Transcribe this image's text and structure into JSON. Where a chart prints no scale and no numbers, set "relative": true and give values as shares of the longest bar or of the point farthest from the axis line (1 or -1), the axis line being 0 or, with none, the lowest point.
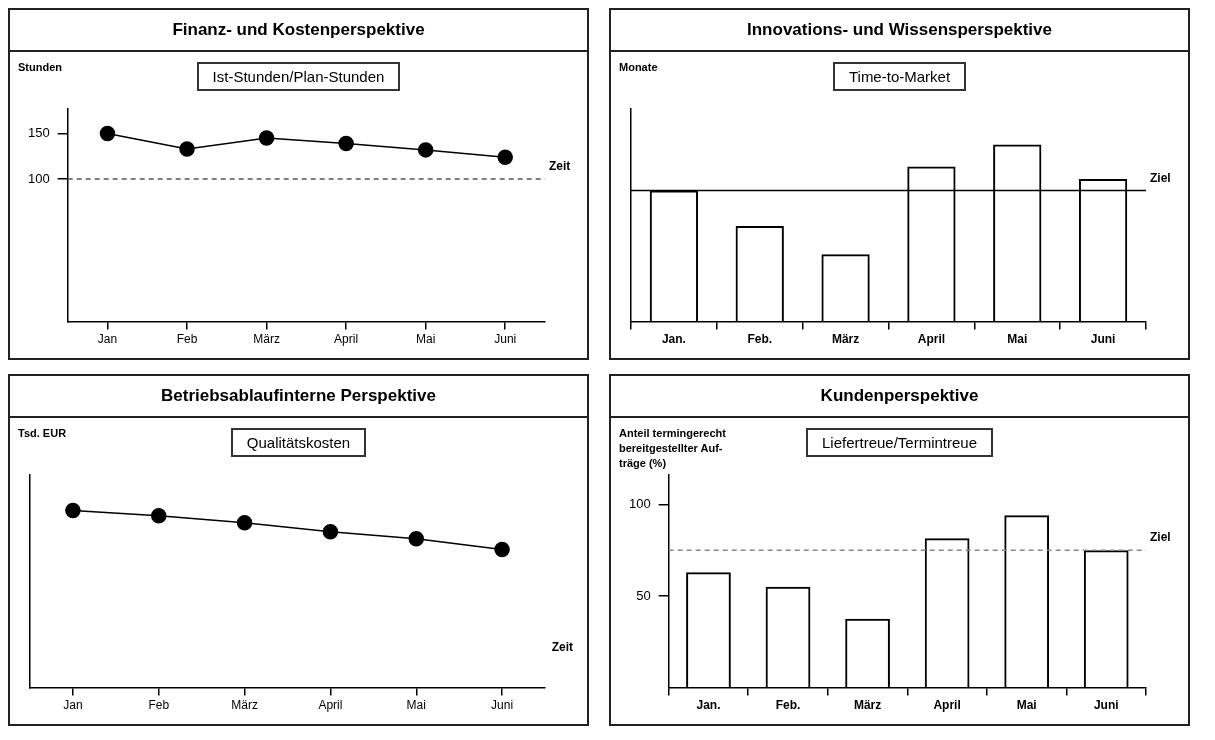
{
  "chart_data": [
    {
      "type": "line",
      "title": "Finanz- und Kostenperspektive",
      "subtitle": "Ist-Stunden/Plan-Stunden",
      "ylabel": "Stunden",
      "categories": [
        "Jan",
        "Feb",
        "März",
        "April",
        "Mai",
        "Juni"
      ],
      "values": [
        150,
        133,
        145,
        139,
        132,
        124
      ],
      "color": "#000000",
      "marker": "circle",
      "ylim": [
        -57,
        177
      ],
      "yticks": [
        100,
        150
      ],
      "ref_lines": [
        {
          "axis": "y",
          "value": 100,
          "label": "Zeit",
          "line_style": "dashed",
          "color": "#555555"
        }
      ]
    },
    {
      "type": "bar",
      "title": "Innovations- und Wissensperspektive",
      "subtitle": "Time-to-Market",
      "ylabel": "Monate",
      "categories": [
        "Jan.",
        "Feb.",
        "März",
        "April",
        "Mai",
        "Juni"
      ],
      "values": [
        0.74,
        0.54,
        0.38,
        0.875,
        1,
        0.805
      ],
      "color": "#000000",
      "relative": true,
      "ref_lines": [
        {
          "axis": "y",
          "value": 0.74,
          "label": "Ziel",
          "line_style": "solid",
          "color": "#000000"
        }
      ]
    },
    {
      "type": "line",
      "title": "Betriebsablaufinterne Perspektive",
      "subtitle": "Qualitätskosten",
      "ylabel": "Tsd. EUR",
      "xlabel": "Zeit",
      "categories": [
        "Jan",
        "Feb",
        "März",
        "April",
        "Mai",
        "Juni"
      ],
      "values": [
        1,
        0.97,
        0.93,
        0.88,
        0.84,
        0.78
      ],
      "color": "#000000",
      "marker": "circle",
      "relative": true
    },
    {
      "type": "bar",
      "title": "Kundenperspektive",
      "subtitle": "Liefertreue/Termintreue",
      "ylabel": "Anteil termingerecht bereitgestellter Auf-träge (%)",
      "categories": [
        "Jan.",
        "Feb.",
        "März",
        "April",
        "Mai",
        "Juni"
      ],
      "values": [
        63,
        55,
        37.5,
        81.5,
        94,
        75
      ],
      "color": "#000000",
      "ylim": [
        0,
        116
      ],
      "yticks": [
        50,
        100
      ],
      "ref_lines": [
        {
          "axis": "y",
          "value": 75,
          "label": "Ziel",
          "line_style": "dashed",
          "color": "#888888"
        }
      ]
    }
  ]
}
